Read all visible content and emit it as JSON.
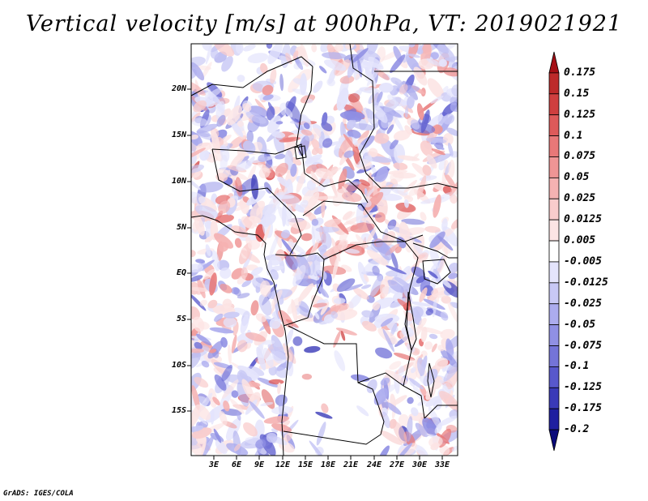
{
  "title": "Vertical velocity [m/s] at 900hPa, VT: 2019021921",
  "credit": "GrADS: IGES/COLA",
  "map": {
    "lat_labels": [
      "20N",
      "15N",
      "10N",
      "5N",
      "EQ",
      "5S",
      "10S",
      "15S"
    ],
    "lon_labels": [
      "3E",
      "6E",
      "9E",
      "12E",
      "15E",
      "18E",
      "21E",
      "24E",
      "27E",
      "30E",
      "33E"
    ],
    "lon_range": [
      0,
      35
    ],
    "lat_range": [
      -20,
      25
    ]
  },
  "colorbar": {
    "levels": [
      "0.175",
      "0.15",
      "0.125",
      "0.1",
      "0.075",
      "0.05",
      "0.025",
      "0.0125",
      "0.005",
      "-0.005",
      "-0.0125",
      "-0.025",
      "-0.05",
      "-0.075",
      "-0.1",
      "-0.125",
      "-0.175",
      "-0.2"
    ],
    "colors": [
      "#a50f15",
      "#bd2a2a",
      "#cf3f3f",
      "#de5a5a",
      "#e87878",
      "#ef9595",
      "#f5b2b2",
      "#f9cccc",
      "#fce4e4",
      "#ffffff",
      "#e4e4fc",
      "#c8c8f5",
      "#acacee",
      "#9090e4",
      "#7474d8",
      "#5858cc",
      "#3a3ab8",
      "#1f1fa0",
      "#0a0a7a"
    ]
  }
}
